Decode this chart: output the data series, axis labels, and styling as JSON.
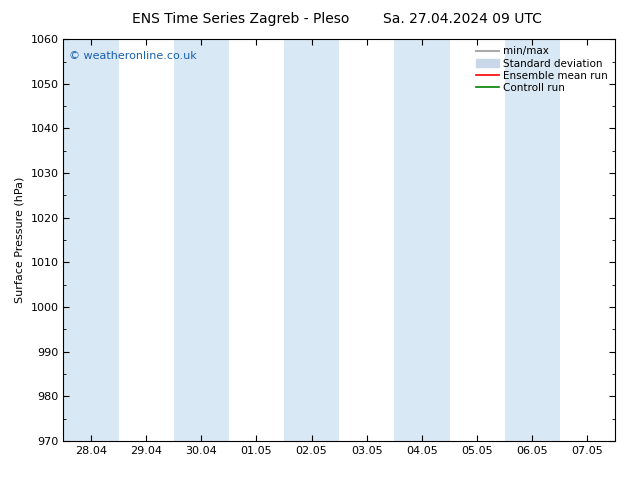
{
  "title_left": "ENS Time Series Zagreb - Pleso",
  "title_right": "Sa. 27.04.2024 09 UTC",
  "ylabel": "Surface Pressure (hPa)",
  "ylim": [
    970,
    1060
  ],
  "yticks": [
    970,
    980,
    990,
    1000,
    1010,
    1020,
    1030,
    1040,
    1050,
    1060
  ],
  "xtick_labels": [
    "28.04",
    "29.04",
    "30.04",
    "01.05",
    "02.05",
    "03.05",
    "04.05",
    "05.05",
    "06.05",
    "07.05"
  ],
  "xtick_positions": [
    0,
    1,
    2,
    3,
    4,
    5,
    6,
    7,
    8,
    9
  ],
  "xlim": [
    -0.5,
    9.5
  ],
  "shaded_bands": [
    {
      "x_start": -0.5,
      "x_end": 0.5,
      "color": "#d8e8f4"
    },
    {
      "x_start": 1.5,
      "x_end": 2.5,
      "color": "#d8e8f4"
    },
    {
      "x_start": 3.5,
      "x_end": 4.5,
      "color": "#d8e8f4"
    },
    {
      "x_start": 5.5,
      "x_end": 6.5,
      "color": "#d8e8f4"
    },
    {
      "x_start": 7.5,
      "x_end": 8.5,
      "color": "#d8e8f4"
    }
  ],
  "copyright_text": "© weatheronline.co.uk",
  "copyright_color": "#1a5fb4",
  "legend_labels": [
    "min/max",
    "Standard deviation",
    "Ensemble mean run",
    "Controll run"
  ],
  "legend_colors": [
    "#aaaaaa",
    "#c8d8e8",
    "#ff0000",
    "#008000"
  ],
  "bg_color": "#ffffff",
  "spine_color": "#000000",
  "tick_color": "#000000",
  "font_size_title": 10,
  "font_size_axis": 8,
  "font_size_tick": 8,
  "font_size_legend": 7.5,
  "font_size_copyright": 8
}
